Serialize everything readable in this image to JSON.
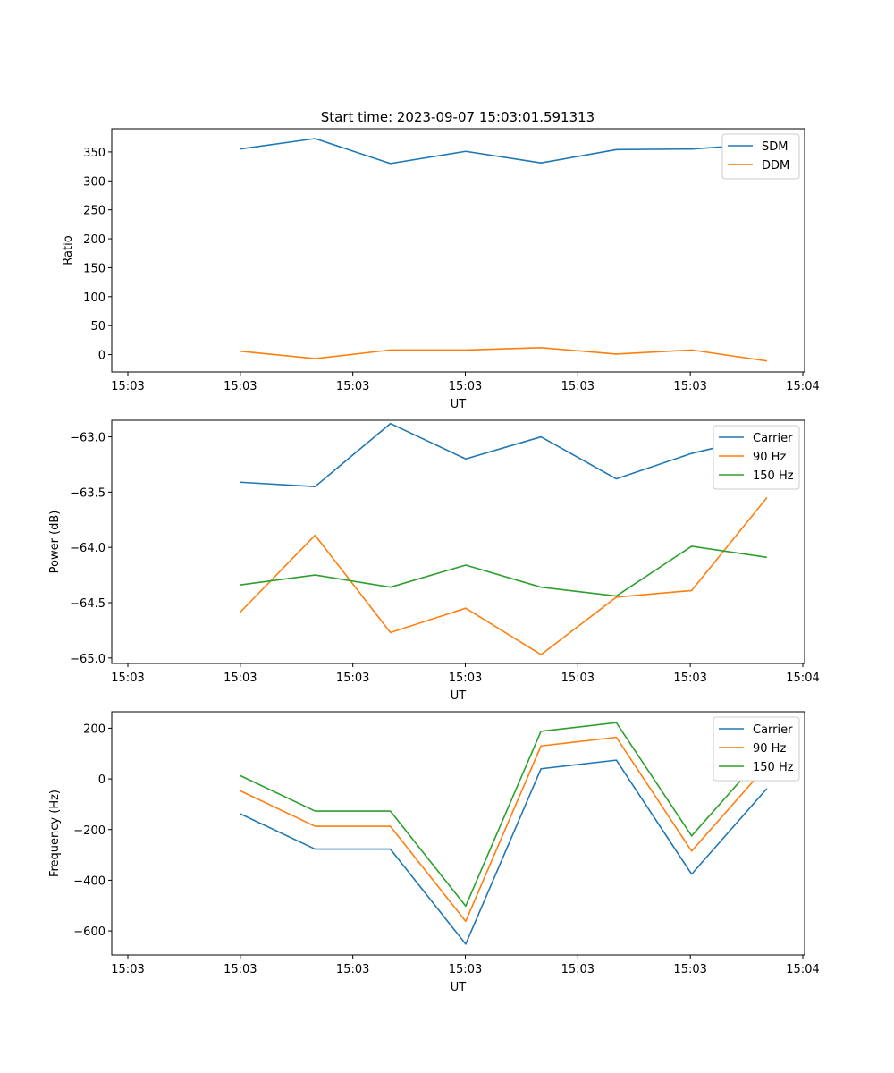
{
  "figure_title": "Start time: 2023-09-07 15:03:01.591313",
  "chart_data": [
    {
      "type": "line",
      "title": "Start time: 2023-09-07 15:03:01.591313",
      "xlabel": "UT",
      "ylabel": "Ratio",
      "x_tick_labels": [
        "15:03",
        "15:03",
        "15:03",
        "15:03",
        "15:03",
        "15:03",
        "15:04"
      ],
      "x_points": [
        1,
        2,
        3,
        4,
        5,
        6,
        7,
        8
      ],
      "xlim": [
        -0.7,
        8.5
      ],
      "ylim": [
        -30,
        390
      ],
      "yticks": [
        0,
        50,
        100,
        150,
        200,
        250,
        300,
        350
      ],
      "legend_position": "top-right",
      "series": [
        {
          "name": "SDM",
          "color": "#1f77b4",
          "values": [
            355,
            373,
            330,
            351,
            331,
            354,
            355,
            364
          ]
        },
        {
          "name": "DDM",
          "color": "#ff7f0e",
          "values": [
            6,
            -7,
            8,
            8,
            12,
            1,
            8,
            -11
          ]
        }
      ]
    },
    {
      "type": "line",
      "title": "",
      "xlabel": "UT",
      "ylabel": "Power (dB)",
      "x_tick_labels": [
        "15:03",
        "15:03",
        "15:03",
        "15:03",
        "15:03",
        "15:03",
        "15:04"
      ],
      "x_points": [
        1,
        2,
        3,
        4,
        5,
        6,
        7,
        8
      ],
      "xlim": [
        -0.7,
        8.5
      ],
      "ylim": [
        -65.05,
        -62.85
      ],
      "yticks": [
        -65.0,
        -64.5,
        -64.0,
        -63.5,
        -63.0
      ],
      "legend_position": "top-right",
      "series": [
        {
          "name": "Carrier",
          "color": "#1f77b4",
          "values": [
            -63.41,
            -63.45,
            -62.88,
            -63.2,
            -63.0,
            -63.38,
            -63.15,
            -62.99
          ]
        },
        {
          "name": "90 Hz",
          "color": "#ff7f0e",
          "values": [
            -64.59,
            -63.89,
            -64.77,
            -64.55,
            -64.97,
            -64.45,
            -64.39,
            -63.55
          ]
        },
        {
          "name": "150 Hz",
          "color": "#2ca02c",
          "values": [
            -64.34,
            -64.25,
            -64.36,
            -64.16,
            -64.36,
            -64.44,
            -63.99,
            -64.09
          ]
        }
      ]
    },
    {
      "type": "line",
      "title": "",
      "xlabel": "UT",
      "ylabel": "Frequency (Hz)",
      "x_tick_labels": [
        "15:03",
        "15:03",
        "15:03",
        "15:03",
        "15:03",
        "15:03",
        "15:04"
      ],
      "x_points": [
        1,
        2,
        3,
        4,
        5,
        6,
        7,
        8
      ],
      "xlim": [
        -0.7,
        8.5
      ],
      "ylim": [
        -695,
        265
      ],
      "yticks": [
        -600,
        -400,
        -200,
        0,
        200
      ],
      "legend_position": "top-right",
      "series": [
        {
          "name": "Carrier",
          "color": "#1f77b4",
          "values": [
            -137,
            -277,
            -277,
            -652,
            40,
            74,
            -376,
            -38
          ]
        },
        {
          "name": "90 Hz",
          "color": "#ff7f0e",
          "values": [
            -46,
            -187,
            -187,
            -562,
            130,
            164,
            -285,
            52
          ]
        },
        {
          "name": "150 Hz",
          "color": "#2ca02c",
          "values": [
            14,
            -127,
            -127,
            -502,
            188,
            222,
            -225,
            111
          ]
        }
      ]
    }
  ]
}
